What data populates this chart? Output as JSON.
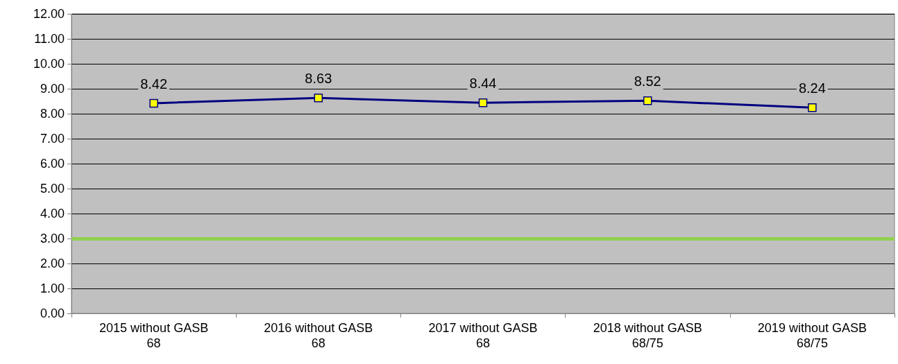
{
  "chart_data": {
    "type": "line",
    "categories": [
      "2015 without GASB 68",
      "2016 without GASB 68",
      "2017 without GASB 68",
      "2018 without GASB 68/75",
      "2019 without GASB 68/75"
    ],
    "series": [
      {
        "color": "#000080",
        "values": [
          8.42,
          8.63,
          8.44,
          8.52,
          8.24
        ]
      }
    ],
    "ylim": [
      0,
      12
    ],
    "yticks": [
      {
        "value": 0,
        "label": "0.00"
      },
      {
        "value": 1,
        "label": "1.00"
      },
      {
        "value": 2,
        "label": "2.00"
      },
      {
        "value": 3,
        "label": "3.00"
      },
      {
        "value": 4,
        "label": "4.00"
      },
      {
        "value": 5,
        "label": "5.00"
      },
      {
        "value": 6,
        "label": "6.00"
      },
      {
        "value": 7,
        "label": "7.00"
      },
      {
        "value": 8,
        "label": "8.00"
      },
      {
        "value": 9,
        "label": "9.00"
      },
      {
        "value": 10,
        "label": "10.00"
      },
      {
        "value": 11,
        "label": "11.00"
      },
      {
        "value": 12,
        "label": "12.00"
      }
    ],
    "ref_lines": [
      {
        "axis": "y",
        "value": 3,
        "color": "#92d050"
      }
    ],
    "data_labels": true,
    "marker": "square",
    "line_style": "solid",
    "grid": "y"
  }
}
